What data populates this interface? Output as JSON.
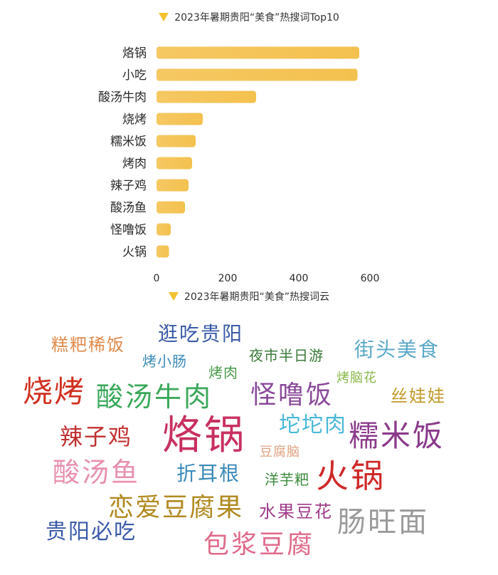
{
  "titles": {
    "bar_chart": "2023年暑期贵阳“美食”热搜词Top10",
    "word_cloud": "2023年暑期贵阳“美食”热搜词云"
  },
  "colors": {
    "triangle": "#f2c230",
    "bar_gradient_start": "#f6c863",
    "bar_gradient_end": "#f3c14e"
  },
  "chart_data": [
    {
      "type": "bar",
      "orientation": "horizontal",
      "title": "2023年暑期贵阳“美食”热搜词Top10",
      "categories": [
        "烙锅",
        "小吃",
        "酸汤牛肉",
        "烧烤",
        "糯米饭",
        "烤肉",
        "辣子鸡",
        "酸汤鱼",
        "怪噜饭",
        "火锅"
      ],
      "values": [
        570,
        565,
        280,
        130,
        110,
        100,
        90,
        80,
        40,
        35
      ],
      "xlim": [
        0,
        700
      ],
      "xticks": [
        0,
        200,
        400,
        600
      ],
      "grid": false
    },
    {
      "type": "word_cloud",
      "title": "2023年暑期贵阳“美食”热搜词云",
      "words": [
        {
          "text": "糕粑稀饭",
          "color": "#e08a4a"
        },
        {
          "text": "逛吃贵阳",
          "color": "#3b5ba8"
        },
        {
          "text": "夜市半日游",
          "color": "#3a7a3a"
        },
        {
          "text": "街头美食",
          "color": "#5aa8c8"
        },
        {
          "text": "烤小肠",
          "color": "#3a8ab8"
        },
        {
          "text": "烤肉",
          "color": "#4a9a4a"
        },
        {
          "text": "烤脑花",
          "color": "#8ab84a"
        },
        {
          "text": "烧烤",
          "color": "#d03020"
        },
        {
          "text": "酸汤牛肉",
          "color": "#3aa85a"
        },
        {
          "text": "怪噜饭",
          "color": "#8a4a9a"
        },
        {
          "text": "丝娃娃",
          "color": "#c09a2a"
        },
        {
          "text": "辣子鸡",
          "color": "#c03030"
        },
        {
          "text": "烙锅",
          "color": "#c83060"
        },
        {
          "text": "坨坨肉",
          "color": "#4ab8d8"
        },
        {
          "text": "糯米饭",
          "color": "#8a3a8a"
        },
        {
          "text": "豆腐脑",
          "color": "#e0a080"
        },
        {
          "text": "酸汤鱼",
          "color": "#e890b0"
        },
        {
          "text": "折耳根",
          "color": "#3a8ab8"
        },
        {
          "text": "洋芋粑",
          "color": "#3a8a3a"
        },
        {
          "text": "火锅",
          "color": "#d02828"
        },
        {
          "text": "恋爱豆腐果",
          "color": "#b08a20"
        },
        {
          "text": "水果豆花",
          "color": "#a03a8a"
        },
        {
          "text": "肠旺面",
          "color": "#9a9a9a"
        },
        {
          "text": "贵阳必吃",
          "color": "#3a5aa8"
        },
        {
          "text": "包浆豆腐",
          "color": "#e06a8a"
        }
      ]
    }
  ]
}
